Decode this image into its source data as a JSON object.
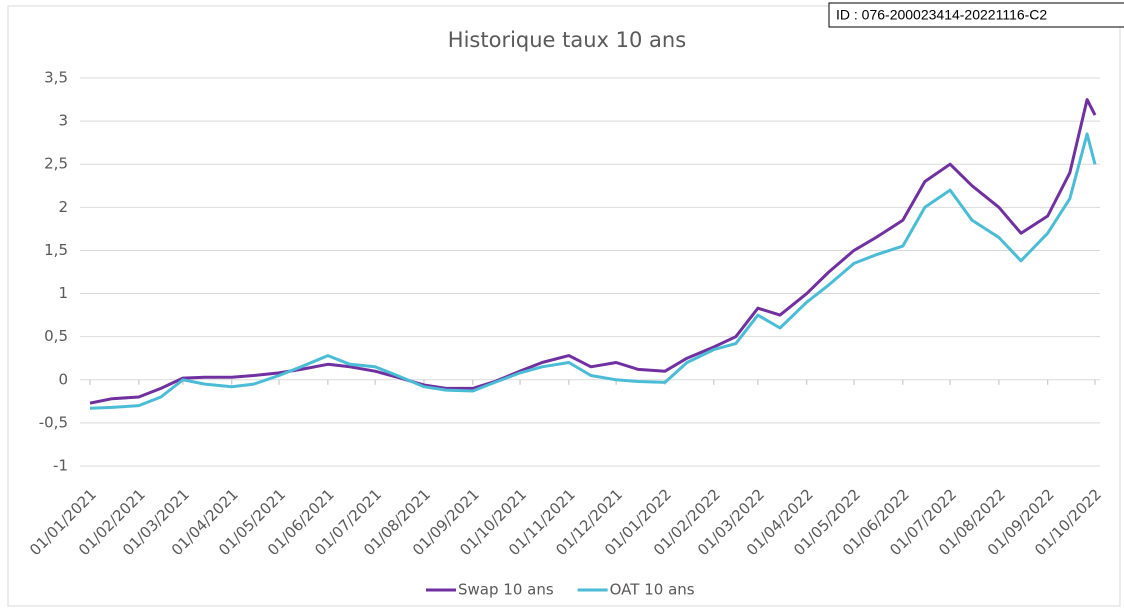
{
  "id_stamp": "ID : 076-200023414-20221116-C2",
  "chart_data": {
    "type": "line",
    "title": "Historique taux 10 ans",
    "x": [
      "01/01/2021",
      "15/01/2021",
      "01/02/2021",
      "15/02/2021",
      "01/03/2021",
      "15/03/2021",
      "01/04/2021",
      "15/04/2021",
      "01/05/2021",
      "15/05/2021",
      "01/06/2021",
      "15/06/2021",
      "01/07/2021",
      "15/07/2021",
      "01/08/2021",
      "15/08/2021",
      "01/09/2021",
      "15/09/2021",
      "01/10/2021",
      "15/10/2021",
      "01/11/2021",
      "15/11/2021",
      "01/12/2021",
      "15/12/2021",
      "01/01/2022",
      "15/01/2022",
      "01/02/2022",
      "15/02/2022",
      "01/03/2022",
      "15/03/2022",
      "01/04/2022",
      "15/04/2022",
      "01/05/2022",
      "15/05/2022",
      "01/06/2022",
      "15/06/2022",
      "01/07/2022",
      "15/07/2022",
      "01/08/2022",
      "15/08/2022",
      "01/09/2022",
      "15/09/2022",
      "26/09/2022",
      "01/10/2022"
    ],
    "series": [
      {
        "name": "Swap 10 ans",
        "color": "#7030a0",
        "values": [
          -0.27,
          -0.22,
          -0.2,
          -0.1,
          0.02,
          0.03,
          0.03,
          0.05,
          0.08,
          0.12,
          0.18,
          0.15,
          0.1,
          0.03,
          -0.06,
          -0.1,
          -0.1,
          -0.02,
          0.1,
          0.2,
          0.28,
          0.15,
          0.2,
          0.12,
          0.1,
          0.25,
          0.38,
          0.5,
          0.83,
          0.75,
          1.0,
          1.25,
          1.5,
          1.65,
          1.85,
          2.3,
          2.5,
          2.25,
          2.0,
          1.7,
          1.9,
          2.4,
          3.25,
          3.07
        ]
      },
      {
        "name": "OAT 10 ans",
        "color": "#4bbcd6",
        "values": [
          -0.33,
          -0.32,
          -0.3,
          -0.2,
          0.0,
          -0.05,
          -0.08,
          -0.05,
          0.05,
          0.15,
          0.28,
          0.18,
          0.15,
          0.05,
          -0.08,
          -0.12,
          -0.13,
          -0.03,
          0.08,
          0.15,
          0.2,
          0.05,
          0.0,
          -0.02,
          -0.03,
          0.2,
          0.35,
          0.42,
          0.75,
          0.6,
          0.9,
          1.1,
          1.35,
          1.45,
          1.55,
          2.0,
          2.2,
          1.85,
          1.65,
          1.38,
          1.7,
          2.1,
          2.85,
          2.5
        ]
      }
    ],
    "xlim": [
      "01/01/2021",
      "01/10/2022"
    ],
    "xticks": [
      "01/01/2021",
      "01/02/2021",
      "01/03/2021",
      "01/04/2021",
      "01/05/2021",
      "01/06/2021",
      "01/07/2021",
      "01/08/2021",
      "01/09/2021",
      "01/10/2021",
      "01/11/2021",
      "01/12/2021",
      "01/01/2022",
      "01/02/2022",
      "01/03/2022",
      "01/04/2022",
      "01/05/2022",
      "01/06/2022",
      "01/07/2022",
      "01/08/2022",
      "01/09/2022",
      "01/10/2022"
    ],
    "ylim": [
      -1,
      3.5
    ],
    "yticks": [
      {
        "value": -1,
        "label": "-1"
      },
      {
        "value": -0.5,
        "label": "-0,5"
      },
      0,
      {
        "value": 0.5,
        "label": "0,5"
      },
      1,
      {
        "value": 1.5,
        "label": "1,5"
      },
      2,
      {
        "value": 2.5,
        "label": "2,5"
      },
      3,
      {
        "value": 3.5,
        "label": "3,5"
      }
    ],
    "grid": true,
    "legend": "bottom"
  }
}
